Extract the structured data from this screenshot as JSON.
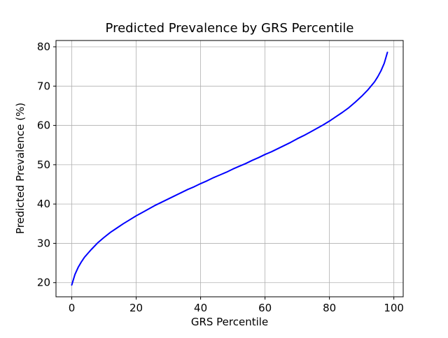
{
  "figure": {
    "background": "#ffffff"
  },
  "chart_data": {
    "type": "line",
    "title": "Predicted Prevalence by GRS Percentile",
    "xlabel": "GRS Percentile",
    "ylabel": "Predicted Prevalence (%)",
    "xlim": [
      -4.9,
      102.9
    ],
    "ylim": [
      16.4,
      81.6
    ],
    "x_ticks": [
      0,
      20,
      40,
      60,
      80,
      100
    ],
    "y_ticks": [
      20,
      30,
      40,
      50,
      60,
      70,
      80
    ],
    "grid": true,
    "legend_position": "none",
    "line_color": "#0000ff",
    "line_width": 2,
    "grid_color": "#b0b0b0",
    "axis_color": "#000000",
    "series": [
      {
        "name": "Predicted Prevalence",
        "x": [
          0,
          1,
          2,
          3,
          4,
          6,
          8,
          10,
          12,
          14,
          16,
          18,
          20,
          22,
          24,
          26,
          28,
          30,
          32,
          34,
          36,
          38,
          40,
          42,
          44,
          46,
          48,
          50,
          52,
          54,
          56,
          58,
          60,
          62,
          64,
          66,
          68,
          70,
          72,
          74,
          76,
          78,
          80,
          82,
          84,
          86,
          88,
          90,
          92,
          94,
          95,
          96,
          97,
          98
        ],
        "y": [
          19.4,
          22.1,
          23.9,
          25.3,
          26.5,
          28.4,
          30.1,
          31.5,
          32.8,
          33.9,
          35.0,
          36.0,
          37.0,
          37.9,
          38.8,
          39.7,
          40.5,
          41.3,
          42.1,
          42.9,
          43.7,
          44.4,
          45.2,
          45.9,
          46.7,
          47.4,
          48.1,
          48.9,
          49.6,
          50.3,
          51.1,
          51.8,
          52.6,
          53.3,
          54.1,
          54.9,
          55.7,
          56.6,
          57.4,
          58.3,
          59.2,
          60.1,
          61.1,
          62.2,
          63.3,
          64.5,
          65.9,
          67.4,
          69.1,
          71.1,
          72.4,
          73.9,
          75.8,
          78.6
        ]
      }
    ]
  }
}
